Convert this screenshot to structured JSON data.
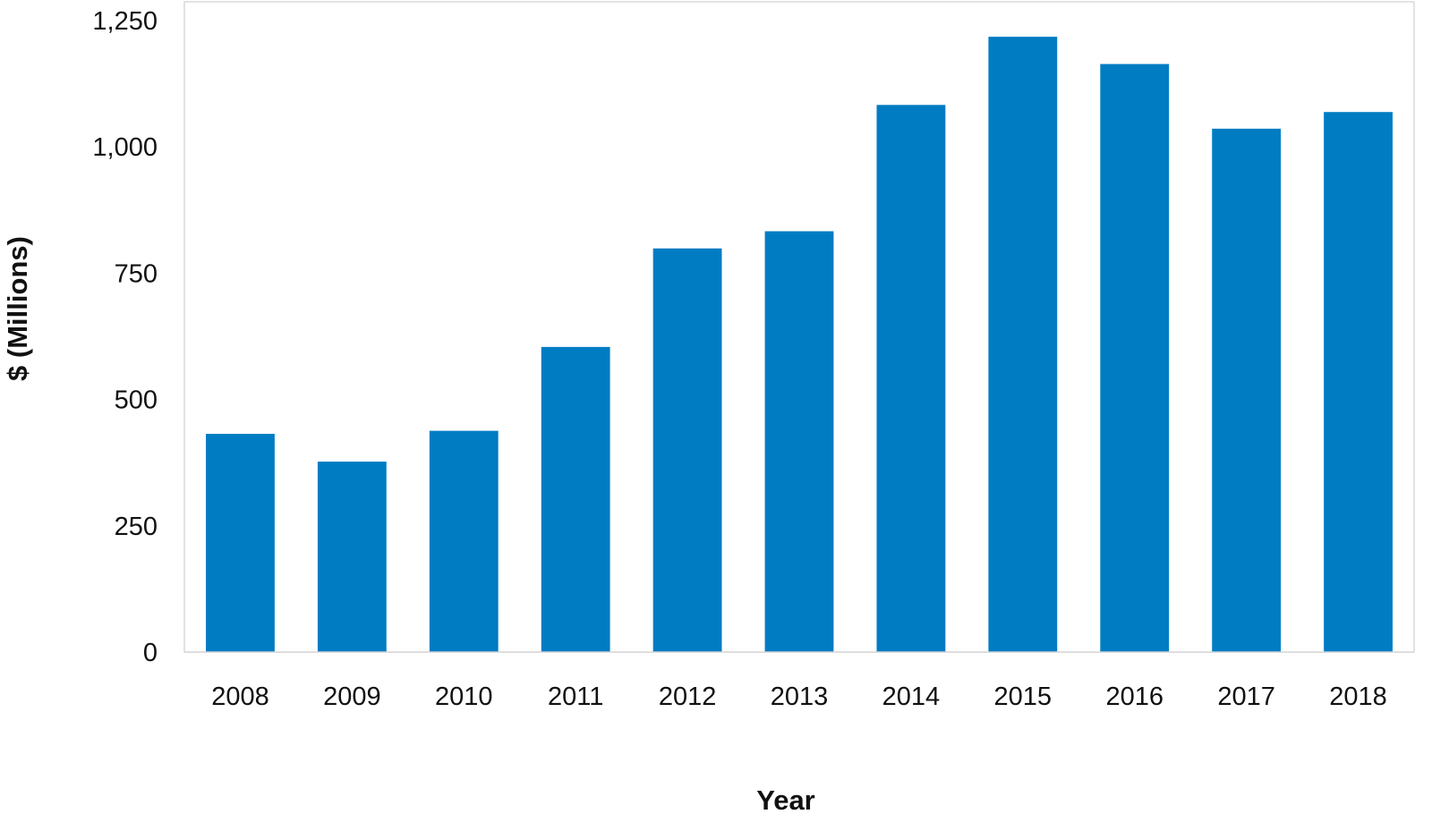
{
  "chart_data": {
    "type": "bar",
    "title": "",
    "xlabel": "Year",
    "ylabel": "$ (Millions)",
    "categories": [
      "2008",
      "2009",
      "2010",
      "2011",
      "2012",
      "2013",
      "2014",
      "2015",
      "2016",
      "2017",
      "2018"
    ],
    "values": [
      432,
      377,
      438,
      604,
      799,
      833,
      1083,
      1218,
      1164,
      1036,
      1069
    ],
    "ylim": [
      0,
      1250
    ],
    "yticks": [
      0,
      250,
      500,
      750,
      1000,
      1250
    ],
    "ytick_labels": [
      "0",
      "250",
      "500",
      "750",
      "1,000",
      "1,250"
    ],
    "bar_color": "#007CC3",
    "grid": false,
    "legend": "none"
  }
}
